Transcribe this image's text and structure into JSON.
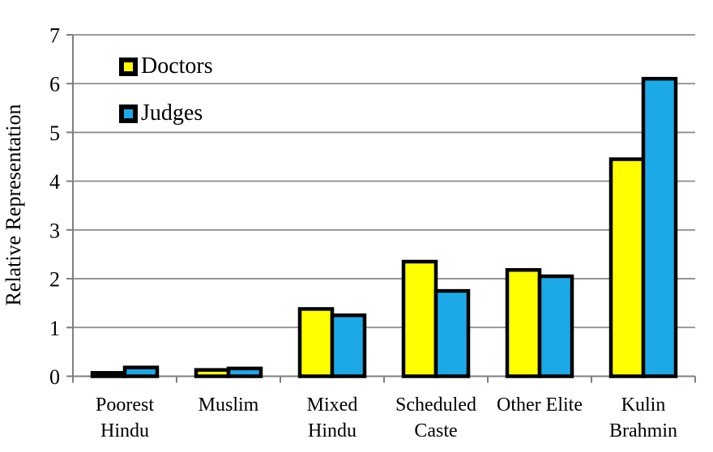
{
  "chart_data": {
    "type": "bar",
    "title": "",
    "xlabel": "",
    "ylabel": "Relative Representation",
    "ylim": [
      0,
      7
    ],
    "yticks": [
      0,
      1,
      2,
      3,
      4,
      5,
      6,
      7
    ],
    "grid": true,
    "legend_position": "top-left-inside",
    "categories": [
      "Poorest Hindu",
      "Muslim",
      "Mixed Hindu",
      "Scheduled Caste",
      "Other Elite",
      "Kulin Brahmin"
    ],
    "category_label_lines": [
      [
        "Poorest",
        "Hindu"
      ],
      [
        "Muslim"
      ],
      [
        "Mixed",
        "Hindu"
      ],
      [
        "Scheduled",
        "Caste"
      ],
      [
        "Other Elite"
      ],
      [
        "Kulin",
        "Brahmin"
      ]
    ],
    "series": [
      {
        "name": "Doctors",
        "color": "#FFFF00",
        "values": [
          0.07,
          0.13,
          1.38,
          2.35,
          2.18,
          4.45
        ]
      },
      {
        "name": "Judges",
        "color": "#1CA9E8",
        "values": [
          0.18,
          0.16,
          1.25,
          1.75,
          2.05,
          6.1
        ]
      }
    ],
    "colors": {
      "bar_border": "#000000",
      "gridline": "#8C8C8C",
      "axis": "#7F7F7F",
      "text": "#000000",
      "background": "#FFFFFF"
    }
  }
}
